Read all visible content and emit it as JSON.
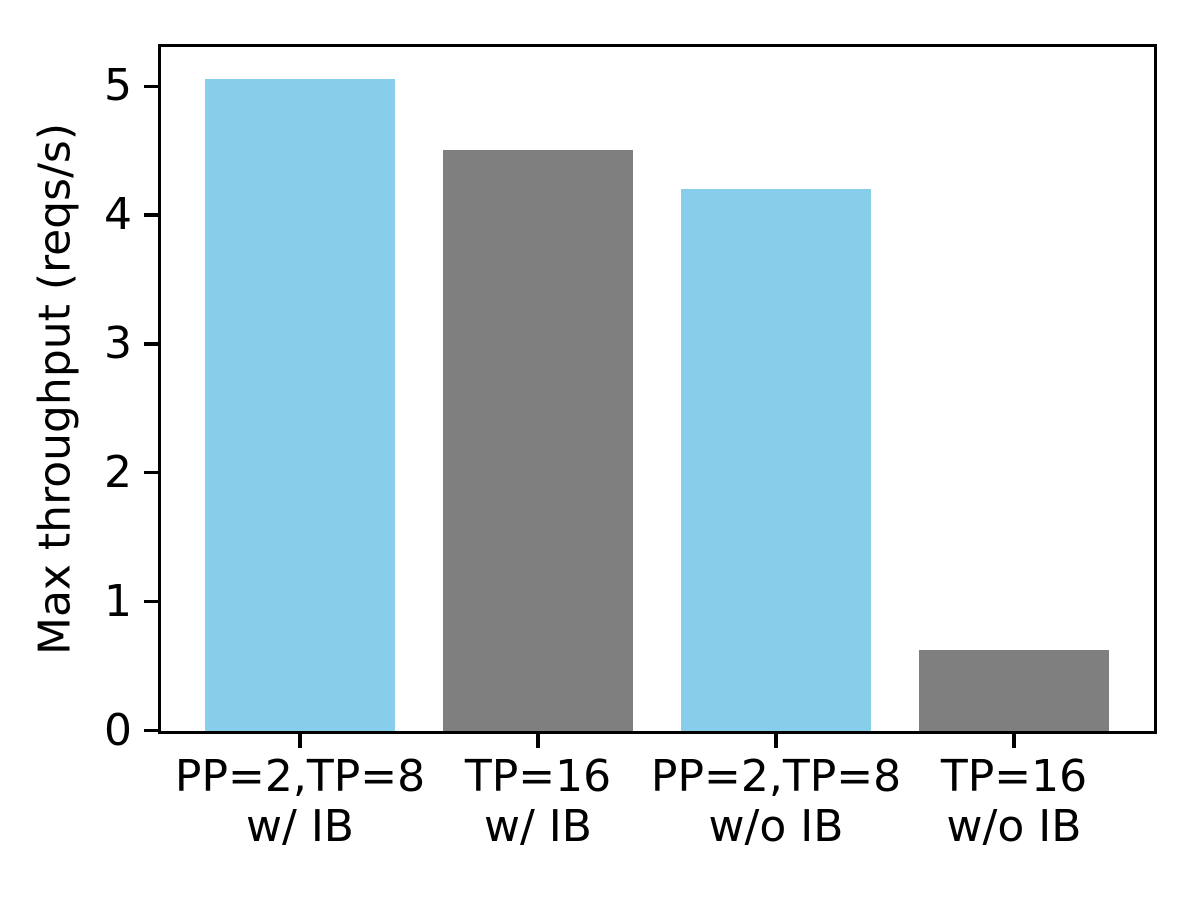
{
  "chart_data": {
    "type": "bar",
    "title": "",
    "xlabel": "",
    "ylabel": "Max throughput (reqs/s)",
    "categories": [
      "PP=2,TP=8\nw/ IB",
      "TP=16\nw/ IB",
      "PP=2,TP=8\nw/o IB",
      "TP=16\nw/o IB"
    ],
    "values": [
      5.06,
      4.51,
      4.21,
      0.63
    ],
    "bar_colors": [
      "#87CEEB",
      "#7F7F7F",
      "#87CEEB",
      "#7F7F7F"
    ],
    "ylim": [
      0,
      5.3
    ],
    "yticks": [
      0,
      1,
      2,
      3,
      4,
      5
    ],
    "grid": false,
    "legend_position": "none",
    "axis_color": "#000000",
    "text_color": "#000000",
    "background_color": "#FFFFFF"
  }
}
